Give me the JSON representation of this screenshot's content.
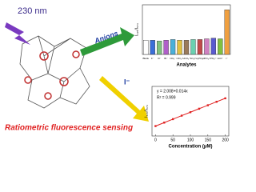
{
  "labels": {
    "wavelength": "230 nm",
    "anions": "Anions",
    "iodide": "I⁻",
    "caption": "Ratiometric fluorescence sensing"
  },
  "chart_data": [
    {
      "type": "bar",
      "y_label": "I₄₁₅/I₅₇₄",
      "x_label": "Analytes",
      "categories": [
        "Blank",
        "F⁻",
        "Cl⁻",
        "Br⁻",
        "NO₃⁻",
        "ClO₄⁻",
        "HCO₃⁻",
        "SO₄²⁻",
        "H₂PO₄⁻",
        "HPO₄²⁻",
        "PO₄³⁻",
        "AcO⁻",
        "I⁻"
      ],
      "values": [
        2.0,
        2.0,
        1.9,
        2.0,
        2.1,
        2.0,
        2.0,
        2.1,
        2.1,
        2.2,
        2.3,
        2.2,
        6.3
      ],
      "colors": [
        "#ffffff",
        "#3a6fd8",
        "#7fc27f",
        "#b05fc9",
        "#4ab0d9",
        "#e0c040",
        "#9a7a5a",
        "#6ad0b0",
        "#c04a4a",
        "#d080c0",
        "#5a5ad0",
        "#80c040",
        "#f0a040"
      ],
      "ylim": [
        0,
        7
      ]
    },
    {
      "type": "line",
      "y_label": "I₄₁₅/I₅₇₄",
      "x_label": "Concentration (μM)",
      "equation": "y = 2.008+0.014x",
      "r2": "R² = 0.999",
      "x": [
        0,
        25,
        50,
        75,
        100,
        125,
        150,
        175,
        200
      ],
      "values": [
        2.0,
        2.35,
        2.7,
        3.05,
        3.4,
        3.75,
        4.1,
        4.45,
        4.8
      ],
      "color": "#e02020",
      "xlim": [
        -10,
        210
      ],
      "ylim": [
        1,
        6
      ],
      "xticks": [
        0,
        50,
        100,
        150,
        200
      ]
    }
  ]
}
